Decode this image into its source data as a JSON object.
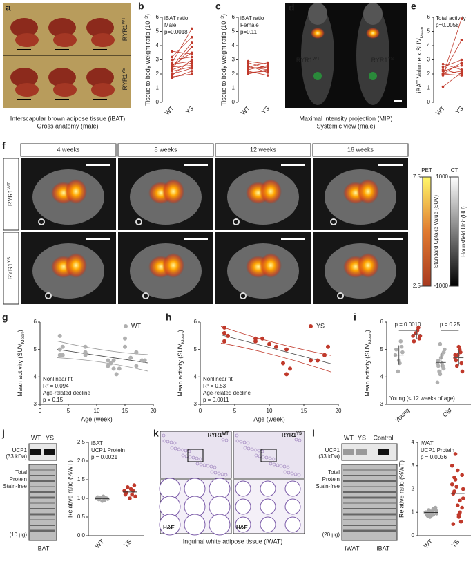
{
  "a": {
    "label": "a",
    "row_labels": [
      {
        "base": "RYR1",
        "sup": "WT"
      },
      {
        "base": "RYR1",
        "sup": "YS"
      }
    ],
    "caption": [
      "Interscapular brown adipose tissue (iBAT)",
      "Gross anatomy (male)"
    ]
  },
  "b": {
    "label": "b",
    "type": "paired",
    "notes": [
      "iBAT ratio",
      "Male",
      "p=0.0018"
    ],
    "ylabel": {
      "base": "Tissue to body weight ratio (10",
      "sup": "−3",
      "end": ")"
    },
    "categories": [
      "WT",
      "YS"
    ],
    "color": "#c0392b",
    "ylim": [
      0,
      6
    ],
    "yticks": [
      0,
      1,
      2,
      3,
      4,
      5,
      6
    ],
    "pairs": [
      [
        2.6,
        3.5
      ],
      [
        2.3,
        2.8
      ],
      [
        2.0,
        2.4
      ],
      [
        1.9,
        3.0
      ],
      [
        2.8,
        5.2
      ],
      [
        3.2,
        4.6
      ],
      [
        2.5,
        2.6
      ],
      [
        1.7,
        2.2
      ],
      [
        2.4,
        3.9
      ],
      [
        3.0,
        3.2
      ],
      [
        2.2,
        2.5
      ],
      [
        2.7,
        2.9
      ],
      [
        1.8,
        2.0
      ],
      [
        3.6,
        3.4
      ],
      [
        2.5,
        4.2
      ]
    ]
  },
  "c": {
    "label": "c",
    "type": "paired",
    "notes": [
      "iBAT ratio",
      "Female",
      "p=0.11"
    ],
    "ylabel": {
      "base": "Tissue to body weight ratio (10",
      "sup": "−3",
      "end": ")"
    },
    "categories": [
      "WT",
      "YS"
    ],
    "color": "#c0392b",
    "ylim": [
      0,
      6
    ],
    "yticks": [
      0,
      1,
      2,
      3,
      4,
      5,
      6
    ],
    "pairs": [
      [
        2.8,
        2.4
      ],
      [
        2.5,
        2.3
      ],
      [
        2.3,
        2.6
      ],
      [
        2.1,
        2.2
      ],
      [
        2.6,
        2.1
      ],
      [
        2.0,
        2.3
      ],
      [
        2.4,
        2.5
      ],
      [
        2.9,
        2.7
      ],
      [
        2.2,
        1.9
      ],
      [
        2.5,
        2.8
      ]
    ]
  },
  "d": {
    "label": "d",
    "labels": [
      {
        "base": "RYR1",
        "sup": "WT"
      },
      {
        "base": "RYR1",
        "sup": "YS"
      }
    ],
    "caption": [
      "Maximal intensity projection (MIP)",
      "Systemic view (male)"
    ]
  },
  "e": {
    "label": "e",
    "type": "paired",
    "notes": [
      "Total activity",
      "p=0.0058"
    ],
    "ylabel": {
      "base": "iBAT Volume x SUV",
      "sub": "Mean"
    },
    "categories": [
      "WT",
      "YS"
    ],
    "color": "#c0392b",
    "ylim": [
      0,
      6
    ],
    "yticks": [
      0,
      1,
      2,
      3,
      4,
      5,
      6
    ],
    "pairs": [
      [
        2.0,
        4.4
      ],
      [
        2.0,
        2.8
      ],
      [
        1.1,
        2.1
      ],
      [
        2.7,
        2.3
      ],
      [
        2.2,
        2.6
      ],
      [
        2.5,
        3.0
      ],
      [
        2.0,
        1.9
      ],
      [
        2.3,
        2.0
      ],
      [
        2.0,
        2.2
      ],
      [
        1.9,
        5.9
      ]
    ]
  },
  "f": {
    "label": "f",
    "columns": [
      "4 weeks",
      "8 weeks",
      "12 weeks",
      "16 weeks"
    ],
    "rows": [
      {
        "base": "RYR1",
        "sup": "WT"
      },
      {
        "base": "RYR1",
        "sup": "YS"
      }
    ],
    "pet": {
      "label": "PET",
      "title": "Standard Uptake Value (SUV)",
      "ticks": [
        7.5,
        2.5
      ]
    },
    "ct": {
      "label": "CT",
      "title": "Hounsfield Unit (HU)",
      "ticks": [
        1000,
        -1000
      ]
    }
  },
  "g": {
    "label": "g",
    "type": "scatter",
    "legend": "WT",
    "color": "#b0b0b0",
    "notes": [
      "Nonlinear fit",
      "R² = 0.094",
      "Age-related decline",
      "p = 0.15"
    ],
    "ylabel": {
      "base": "Mean activity (SUV",
      "sub": "Mean",
      "end": ")"
    },
    "xlabel": "Age (week)",
    "xlim": [
      0,
      20
    ],
    "xticks": [
      0,
      5,
      10,
      15,
      20
    ],
    "ylim": [
      3,
      6
    ],
    "yticks": [
      3,
      4,
      5,
      6
    ],
    "x": [
      3.5,
      3.5,
      3.5,
      4,
      4,
      8,
      8,
      8,
      12,
      12,
      12.5,
      13,
      13,
      13.5,
      14,
      15,
      15,
      16,
      17,
      17,
      18,
      18.5
    ],
    "y": [
      5.5,
      5,
      4.8,
      5.1,
      4.8,
      5.1,
      4.8,
      4.9,
      4.6,
      4.4,
      4.5,
      4.3,
      4.6,
      4.1,
      4.3,
      5.1,
      5.4,
      4.7,
      4.4,
      4.9,
      4.6,
      4.6
    ]
  },
  "h": {
    "label": "h",
    "type": "scatter",
    "legend": "YS",
    "color": "#c0392b",
    "notes": [
      "Nonlinear fit",
      "R² = 0.53",
      "Age-related decline",
      "p = 0.0011"
    ],
    "ylabel": {
      "base": "Mean activity (SUV",
      "sub": "Mean",
      "end": ")"
    },
    "xlabel": "Age (week)",
    "xlim": [
      0,
      20
    ],
    "xticks": [
      0,
      5,
      10,
      15,
      20
    ],
    "ylim": [
      3,
      6
    ],
    "yticks": [
      3,
      4,
      5,
      6
    ],
    "x": [
      3.5,
      3.5,
      3.5,
      4,
      8,
      8,
      9,
      10,
      11,
      12,
      12.5,
      12.5,
      13,
      16,
      17,
      18,
      18.5
    ],
    "y": [
      5.8,
      5.6,
      5.3,
      5.5,
      5.4,
      5.3,
      5.4,
      5.2,
      5.1,
      4.5,
      5.0,
      4.1,
      4.3,
      4.6,
      4.6,
      4.8,
      5.1
    ]
  },
  "i": {
    "label": "i",
    "type": "grouped_dots",
    "ylabel": {
      "base": "Mean activity (SUV",
      "sub": "Mean",
      "end": ")"
    },
    "categories": [
      "Young",
      "Old"
    ],
    "annotations": [
      "p = 0.0010",
      "p = 0.25"
    ],
    "footnote": "Young (≤ 12 weeks of age)",
    "ylim": [
      3,
      6
    ],
    "yticks": [
      3,
      4,
      5,
      6
    ],
    "series": [
      {
        "color": "#b0b0b0",
        "values": [
          [
            4.8,
            5.1,
            4.5,
            4.2,
            5.0,
            4.9,
            5.3,
            4.6
          ],
          [
            4.5,
            4.3,
            4.8,
            4.1,
            4.6,
            5.0,
            4.4,
            4.7,
            4.2,
            3.8,
            4.9,
            4.5,
            5.2,
            4.4
          ]
        ]
      },
      {
        "color": "#c0392b",
        "values": [
          [
            5.5,
            5.4,
            5.7,
            5.6,
            5.3,
            5.5,
            5.8
          ],
          [
            4.7,
            4.5,
            5.0,
            4.8,
            4.6,
            4.2,
            4.9,
            5.1,
            4.4,
            4.8
          ]
        ]
      }
    ]
  },
  "j": {
    "label": "j",
    "blot": {
      "lanes": [
        "WT",
        "YS"
      ],
      "left": [
        "UCP1",
        "(33 kDa)",
        "Total",
        "Protein",
        "Stain-free",
        "(10 µg)"
      ],
      "bottom": [
        "iBAT"
      ]
    },
    "type": "dots",
    "notes": [
      "iBAT",
      "UCP1 Protein",
      "p = 0.0021"
    ],
    "ylabel": "Relative ratio (%WT)",
    "categories": [
      "WT",
      "YS"
    ],
    "colors": [
      "#a8a8a8",
      "#c0392b"
    ],
    "ylim": [
      0,
      2.5
    ],
    "yticks": [
      {
        "value": 0,
        "label": "0.0"
      },
      {
        "value": 0.5,
        "label": "0.5"
      },
      {
        "value": 1,
        "label": "1.0"
      },
      {
        "value": 1.5,
        "label": "1.5"
      },
      {
        "value": 2,
        "label": "2.0"
      },
      {
        "value": 2.5,
        "label": "2.5"
      }
    ],
    "values": [
      [
        1.0,
        0.95,
        1.02,
        0.98,
        1.05,
        0.97,
        1.0,
        0.93,
        1.03,
        1.01
      ],
      [
        1.2,
        1.1,
        1.3,
        1.05,
        1.25,
        1.15,
        1.35,
        1.0,
        1.1,
        1.2
      ]
    ]
  },
  "k": {
    "label": "k",
    "panels": [
      {
        "base": "RYR1",
        "sup": "WT"
      },
      {
        "base": "RYR1",
        "sup": "YS"
      }
    ],
    "stain": [
      "H&E",
      "H&E"
    ],
    "caption": "Inguinal white adipose tissue (iWAT)"
  },
  "l": {
    "label": "l",
    "blot": {
      "lanes": [
        "WT",
        "YS",
        "Control"
      ],
      "left": [
        "UCP1",
        "(33 kDa)",
        "Total",
        "Protein",
        "Stain-free",
        "(20 µg)"
      ],
      "bottom": [
        "iWAT",
        "iBAT"
      ]
    },
    "type": "dots",
    "notes": [
      "iWAT",
      "UCP1 Protein",
      "p = 0.0036"
    ],
    "ylabel": "Relative ratio (%WT)",
    "categories": [
      "WT",
      "YS"
    ],
    "colors": [
      "#a8a8a8",
      "#c0392b"
    ],
    "ylim": [
      0,
      4
    ],
    "yticks": [
      0,
      1,
      2,
      3,
      4
    ],
    "values": [
      [
        1.0,
        0.9,
        1.1,
        0.95,
        1.05,
        0.85,
        1.2,
        1.0,
        0.9,
        1.1,
        0.8,
        1.0,
        1.15,
        0.95,
        1.05,
        0.9,
        1.0,
        1.1,
        0.85,
        1.0
      ],
      [
        2.2,
        1.5,
        3.5,
        2.0,
        0.8,
        2.5,
        1.2,
        2.8,
        1.8,
        0.6,
        2.1,
        3.0,
        1.0,
        2.4,
        1.6,
        0.9,
        1.9,
        2.6,
        1.3,
        0.5
      ]
    ]
  }
}
